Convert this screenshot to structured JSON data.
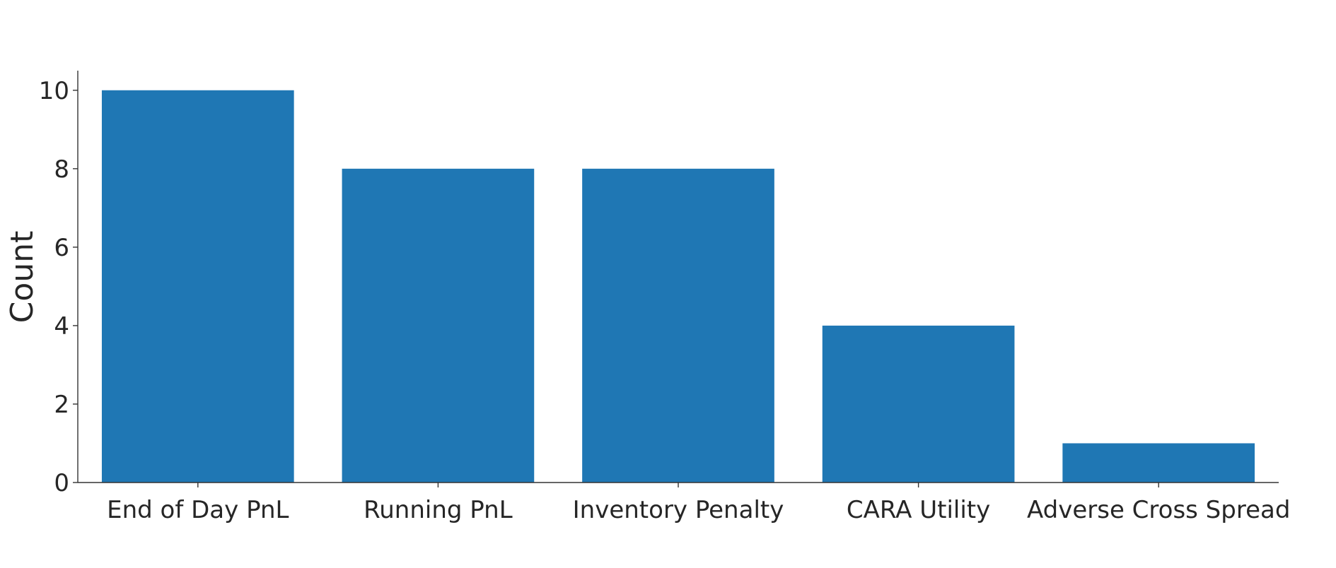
{
  "chart_data": {
    "type": "bar",
    "categories": [
      "End of Day PnL",
      "Running PnL",
      "Inventory Penalty",
      "CARA Utility",
      "Adverse Cross Spread"
    ],
    "values": [
      10,
      8,
      8,
      4,
      1
    ],
    "title": "",
    "xlabel": "",
    "ylabel": "Count",
    "ylim": [
      0,
      10.5
    ],
    "yticks": [
      0,
      2,
      4,
      6,
      8,
      10
    ],
    "grid": false,
    "legend": "none",
    "colors": {
      "bar": "#1f77b4",
      "axis": "#333333",
      "text": "#262626"
    }
  }
}
